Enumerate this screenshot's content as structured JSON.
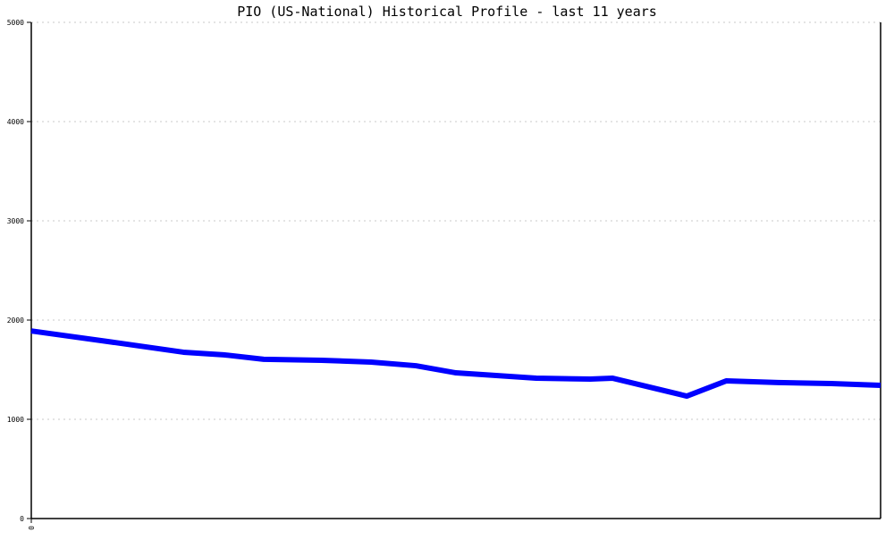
{
  "chart_data": {
    "type": "line",
    "title": "PIO (US-National) Historical Profile - last 11 years",
    "xlabel": "",
    "ylabel": "",
    "ylim": [
      0,
      5000
    ],
    "xlim": [
      0,
      11
    ],
    "yticks": [
      "0",
      "1000",
      "2000",
      "3000",
      "4000",
      "5000"
    ],
    "xticks": [
      "0"
    ],
    "grid": true,
    "line_color": "#0000ff",
    "series": [
      {
        "x": [
          0,
          0.98,
          1.97,
          2.49,
          3.01,
          3.76,
          4.4,
          4.98,
          5.5,
          6.54,
          7.24,
          7.53,
          8.49,
          9.0,
          9.67,
          10.36,
          11
        ],
        "values": [
          1890,
          1785,
          1676,
          1650,
          1605,
          1595,
          1577,
          1540,
          1468,
          1414,
          1405,
          1414,
          1234,
          1387,
          1370,
          1360,
          1342
        ]
      }
    ]
  }
}
